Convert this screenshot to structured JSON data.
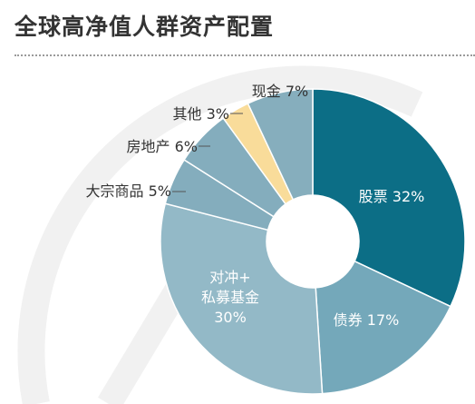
{
  "title": "全球高净值人群资产配置",
  "colors": {
    "background": "#ffffff",
    "watermark": "#f1f1f1",
    "dark_label": "#333333",
    "light_label": "#ffffff",
    "slice_border": "#ffffff"
  },
  "chart_data": {
    "type": "pie",
    "title": "全球高净值人群资产配置",
    "donut": true,
    "start_angle_deg": 0,
    "direction": "clockwise",
    "slices": [
      {
        "label": "股票 32%",
        "value": 32,
        "color": "#0c6e86"
      },
      {
        "label": "债券 17%",
        "value": 17,
        "color": "#74a8ba"
      },
      {
        "label_lines": [
          "对冲+",
          "私募基金",
          "30%"
        ],
        "value": 30,
        "color": "#93b9c7"
      },
      {
        "label": "大宗商品 5%",
        "value": 5,
        "color": "#84adbd"
      },
      {
        "label": "房地产 6%",
        "value": 6,
        "color": "#84adbd"
      },
      {
        "label": "其他 3%",
        "value": 3,
        "color": "#f9dc9a"
      },
      {
        "label": "现金 7%",
        "value": 7,
        "color": "#86aebd"
      }
    ]
  }
}
